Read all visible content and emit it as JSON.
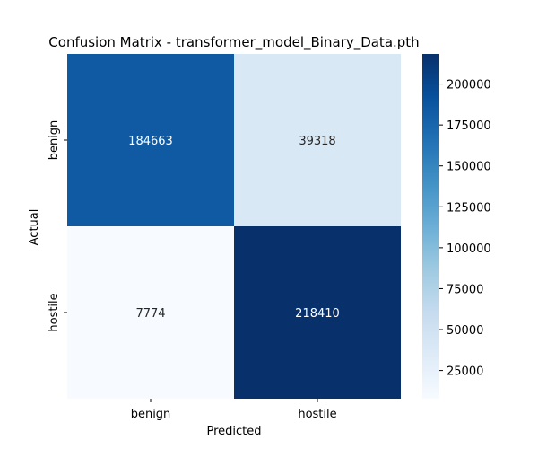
{
  "chart_data": {
    "type": "heatmap",
    "title": "Confusion Matrix - transformer_model_Binary_Data.pth",
    "xlabel": "Predicted",
    "ylabel": "Actual",
    "x_categories": [
      "benign",
      "hostile"
    ],
    "y_categories": [
      "benign",
      "hostile"
    ],
    "values": [
      [
        184663,
        39318
      ],
      [
        7774,
        218410
      ]
    ],
    "colormap": "Blues",
    "color_range": [
      7774,
      218410
    ],
    "colorbar_ticks": [
      25000,
      50000,
      75000,
      100000,
      125000,
      150000,
      175000,
      200000
    ]
  }
}
